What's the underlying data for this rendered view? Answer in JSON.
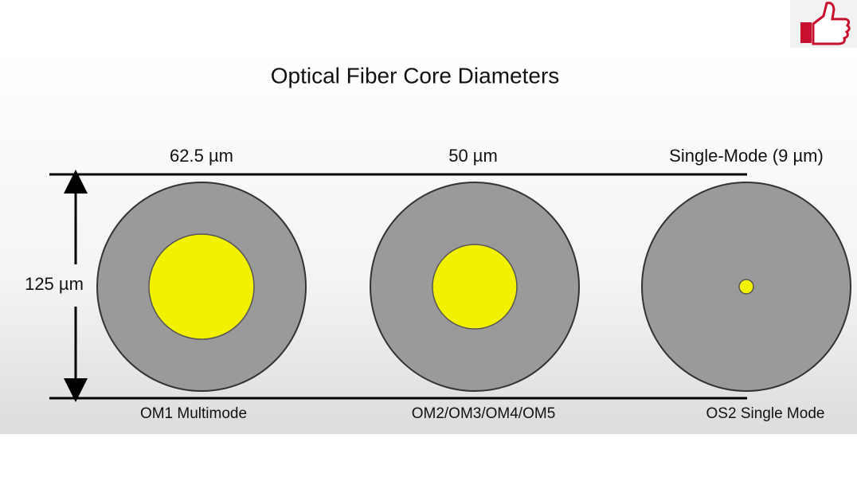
{
  "title": "Optical Fiber Core Diameters",
  "dimension_label": "125 µm",
  "fibers": [
    {
      "core_label": "62.5 µm",
      "type_label": "OM1 Multimode"
    },
    {
      "core_label": "50 µm",
      "type_label": "OM2/OM3/OM4/OM5"
    },
    {
      "core_label": "Single-Mode (9 µm)",
      "type_label": "OS2 Single Mode"
    }
  ]
}
